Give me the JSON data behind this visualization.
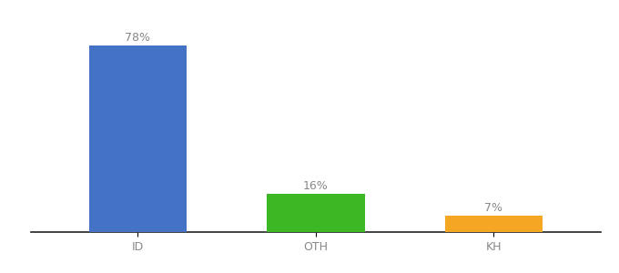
{
  "categories": [
    "ID",
    "OTH",
    "KH"
  ],
  "values": [
    78,
    16,
    7
  ],
  "bar_colors": [
    "#4472c4",
    "#3db825",
    "#f5a623"
  ],
  "labels": [
    "78%",
    "16%",
    "7%"
  ],
  "ylim": [
    0,
    88
  ],
  "background_color": "#ffffff",
  "label_fontsize": 9,
  "tick_fontsize": 9,
  "label_color": "#888888",
  "tick_color": "#888888",
  "bar_width": 0.55,
  "x_positions": [
    0,
    1,
    2
  ]
}
